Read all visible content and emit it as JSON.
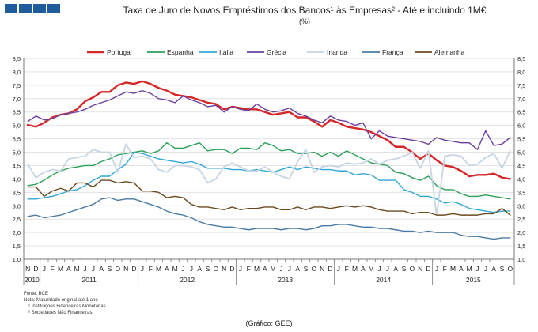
{
  "title": "Taxa de Juro de Novos Empréstimos dos Bancos¹ às Empresas² - Até e incluindo 1M€",
  "subtitle": "(%)",
  "notes": [
    "Fonte: BCE",
    "Nota: Maturidade original até 1 ano",
    "¹ Instituições Financeiras Monetárias",
    "² Sociedades Não Financeiras"
  ],
  "source": "(Gráfico: GEE)",
  "chart_data": {
    "type": "line",
    "title": "Taxa de Juro de Novos Empréstimos dos Bancos¹ às Empresas² - Até e incluindo 1M€",
    "ylabel": "",
    "xlabel": "",
    "ylim": [
      1.0,
      8.5
    ],
    "yticks": [
      "1,0",
      "1,5",
      "2,0",
      "2,5",
      "3,0",
      "3,5",
      "4,0",
      "4,5",
      "5,0",
      "5,5",
      "6,0",
      "6,5",
      "7,0",
      "7,5",
      "8,0",
      "8,5"
    ],
    "grid": true,
    "legend_position": "top",
    "month_labels": [
      "N",
      "D",
      "J",
      "F",
      "M",
      "A",
      "M",
      "J",
      "J",
      "A",
      "S",
      "O",
      "N",
      "D",
      "J",
      "F",
      "M",
      "A",
      "M",
      "J",
      "J",
      "A",
      "S",
      "O",
      "N",
      "D",
      "J",
      "F",
      "M",
      "A",
      "M",
      "J",
      "J",
      "A",
      "S",
      "O",
      "N",
      "D",
      "J",
      "F",
      "M",
      "A",
      "M",
      "J",
      "J",
      "A",
      "S",
      "O",
      "N",
      "D",
      "J",
      "F",
      "M",
      "A",
      "M",
      "J",
      "J",
      "A",
      "S",
      "O"
    ],
    "year_labels": [
      {
        "label": "2010",
        "start": 0,
        "count": 2
      },
      {
        "label": "2011",
        "start": 2,
        "count": 12
      },
      {
        "label": "2012",
        "start": 14,
        "count": 12
      },
      {
        "label": "2013",
        "start": 26,
        "count": 12
      },
      {
        "label": "2014",
        "start": 38,
        "count": 12
      },
      {
        "label": "2015",
        "start": 50,
        "count": 10
      }
    ],
    "series": [
      {
        "name": "Portugal",
        "color": "#d62728",
        "width": 2.4,
        "values": [
          6.02,
          5.95,
          6.1,
          6.3,
          6.4,
          6.45,
          6.6,
          6.9,
          7.05,
          7.25,
          7.25,
          7.5,
          7.6,
          7.55,
          7.65,
          7.55,
          7.4,
          7.3,
          7.15,
          7.1,
          7.05,
          6.95,
          6.85,
          6.8,
          6.6,
          6.7,
          6.65,
          6.6,
          6.6,
          6.5,
          6.4,
          6.45,
          6.5,
          6.3,
          6.3,
          6.15,
          5.95,
          6.2,
          6.1,
          5.95,
          5.9,
          5.85,
          5.75,
          5.6,
          5.45,
          5.2,
          5.2,
          5.0,
          4.75,
          4.95,
          4.7,
          4.5,
          4.45,
          4.3,
          4.1,
          4.15,
          4.15,
          4.2,
          4.05,
          4.0
        ]
      },
      {
        "name": "Espanha",
        "color": "#2ca05a",
        "width": 1.4,
        "values": [
          3.75,
          3.8,
          3.95,
          4.15,
          4.3,
          4.4,
          4.45,
          4.5,
          4.5,
          4.65,
          4.75,
          4.9,
          4.95,
          5.0,
          5.05,
          4.95,
          5.05,
          5.35,
          5.15,
          5.15,
          5.25,
          5.35,
          5.05,
          5.1,
          5.1,
          4.95,
          5.15,
          5.15,
          5.1,
          5.35,
          5.25,
          5.05,
          5.1,
          4.95,
          4.95,
          5.0,
          4.85,
          5.0,
          4.85,
          5.05,
          4.9,
          4.75,
          4.6,
          4.55,
          4.5,
          4.25,
          4.2,
          4.05,
          3.95,
          4.1,
          3.75,
          3.6,
          3.6,
          3.45,
          3.35,
          3.35,
          3.4,
          3.35,
          3.3,
          3.25
        ]
      },
      {
        "name": "Itália",
        "color": "#31a7d6",
        "width": 1.4,
        "values": [
          3.25,
          3.25,
          3.3,
          3.35,
          3.45,
          3.55,
          3.6,
          3.75,
          3.95,
          4.1,
          4.1,
          4.35,
          4.55,
          5.0,
          4.95,
          4.85,
          4.75,
          4.7,
          4.65,
          4.6,
          4.65,
          4.55,
          4.4,
          4.4,
          4.4,
          4.35,
          4.35,
          4.3,
          4.35,
          4.3,
          4.25,
          4.35,
          4.45,
          4.35,
          4.45,
          4.4,
          4.35,
          4.35,
          4.3,
          4.3,
          4.15,
          4.2,
          4.15,
          3.95,
          3.95,
          3.95,
          3.6,
          3.5,
          3.35,
          3.35,
          3.25,
          3.1,
          3.15,
          3.05,
          2.9,
          2.85,
          2.8,
          2.75,
          2.8,
          2.8
        ]
      },
      {
        "name": "Grécia",
        "color": "#6b3fa0",
        "width": 1.4,
        "values": [
          6.15,
          6.35,
          6.2,
          6.25,
          6.4,
          6.45,
          6.5,
          6.6,
          6.75,
          6.85,
          6.95,
          7.1,
          7.25,
          7.2,
          7.3,
          7.2,
          7.0,
          6.95,
          6.85,
          7.1,
          6.95,
          6.85,
          6.7,
          6.75,
          6.5,
          6.7,
          6.6,
          6.55,
          6.8,
          6.6,
          6.5,
          6.55,
          6.65,
          6.45,
          6.35,
          6.2,
          6.1,
          6.35,
          6.2,
          6.15,
          6.0,
          6.1,
          5.5,
          5.8,
          5.6,
          5.55,
          5.5,
          5.45,
          5.4,
          5.3,
          5.55,
          5.45,
          5.4,
          5.35,
          5.35,
          5.1,
          5.8,
          5.25,
          5.3,
          5.55
        ]
      },
      {
        "name": "Irlanda",
        "color": "#c7d5e3",
        "width": 1.8,
        "values": [
          4.55,
          4.05,
          4.25,
          4.35,
          4.3,
          4.75,
          4.8,
          4.85,
          5.1,
          5.0,
          5.0,
          4.25,
          5.3,
          4.8,
          4.85,
          4.75,
          4.35,
          4.25,
          4.5,
          4.5,
          4.45,
          4.35,
          3.85,
          4.0,
          4.45,
          4.6,
          4.45,
          4.3,
          4.3,
          4.45,
          4.25,
          4.1,
          4.0,
          4.65,
          5.1,
          4.25,
          4.45,
          4.5,
          4.45,
          4.6,
          4.55,
          4.6,
          4.75,
          4.55,
          4.7,
          4.75,
          4.85,
          5.0,
          4.4,
          5.05,
          2.65,
          4.85,
          4.9,
          4.85,
          4.5,
          4.55,
          4.8,
          4.95,
          4.4,
          5.05
        ]
      },
      {
        "name": "França",
        "color": "#4a7ba6",
        "width": 1.4,
        "values": [
          2.6,
          2.65,
          2.55,
          2.6,
          2.65,
          2.75,
          2.85,
          2.95,
          3.05,
          3.25,
          3.3,
          3.2,
          3.25,
          3.25,
          3.15,
          3.05,
          2.95,
          2.8,
          2.7,
          2.65,
          2.55,
          2.4,
          2.3,
          2.25,
          2.2,
          2.2,
          2.15,
          2.1,
          2.15,
          2.15,
          2.15,
          2.1,
          2.15,
          2.15,
          2.1,
          2.15,
          2.25,
          2.25,
          2.3,
          2.3,
          2.25,
          2.2,
          2.2,
          2.15,
          2.15,
          2.1,
          2.05,
          2.05,
          2.0,
          2.05,
          2.0,
          2.0,
          2.0,
          1.9,
          1.85,
          1.85,
          1.8,
          1.75,
          1.8,
          1.8
        ]
      },
      {
        "name": "Alemanha",
        "color": "#6b4a1e",
        "width": 1.4,
        "values": [
          3.7,
          3.7,
          3.35,
          3.55,
          3.65,
          3.55,
          3.85,
          3.85,
          3.7,
          3.95,
          3.95,
          3.85,
          3.9,
          3.85,
          3.55,
          3.55,
          3.5,
          3.3,
          3.35,
          3.3,
          3.05,
          2.95,
          2.95,
          2.9,
          2.85,
          2.95,
          2.85,
          2.9,
          2.9,
          2.95,
          2.95,
          2.85,
          2.85,
          2.95,
          2.85,
          2.95,
          2.95,
          2.9,
          2.95,
          3.0,
          2.95,
          3.0,
          2.95,
          2.85,
          2.8,
          2.8,
          2.8,
          2.7,
          2.75,
          2.75,
          2.65,
          2.65,
          2.7,
          2.65,
          2.65,
          2.65,
          2.7,
          2.7,
          2.9,
          2.65
        ]
      }
    ]
  }
}
